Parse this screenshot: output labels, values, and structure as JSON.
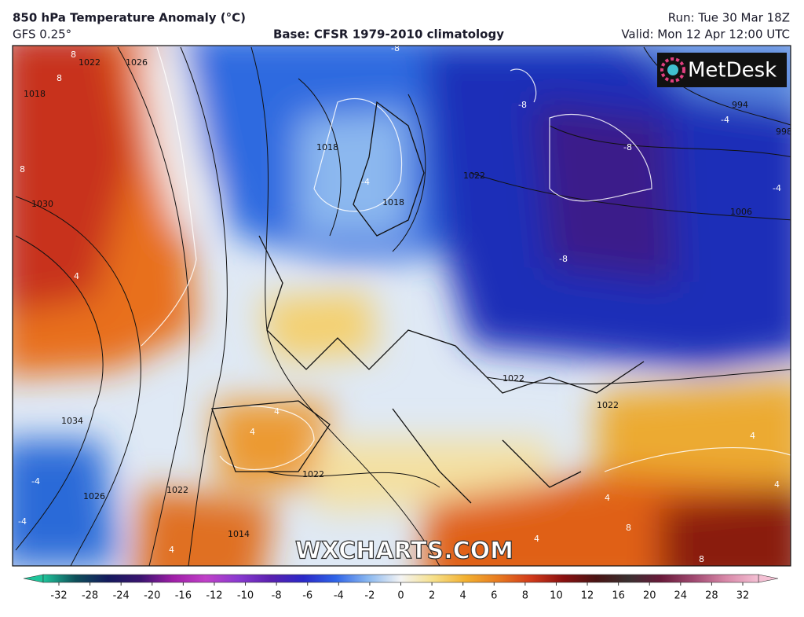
{
  "header": {
    "title": "850 hPa Temperature Anomaly (°C)",
    "model": "GFS 0.25°",
    "base": "Base: CFSR 1979-2010 climatology",
    "run": "Run: Tue 30 Mar 18Z",
    "valid": "Valid: Mon 12 Apr 12:00 UTC"
  },
  "map": {
    "logo": "MetDesk",
    "watermark": "WXCHARTS.COM",
    "isobar_labels": [
      "1018",
      "1022",
      "1026",
      "1030",
      "1034",
      "1026",
      "1022",
      "1014",
      "1018",
      "1018",
      "1022",
      "1022",
      "994",
      "998",
      "1006",
      "1022",
      "1022"
    ],
    "anomaly_labels": [
      "8",
      "8",
      "8",
      "4",
      "-4",
      "-8",
      "-8",
      "-8",
      "-8",
      "-4",
      "-4",
      "4",
      "4",
      "4",
      "-4",
      "-4",
      "4",
      "8",
      "8",
      "4",
      "4",
      "4"
    ]
  },
  "colorbar": {
    "ticks": [
      -32,
      -28,
      -24,
      -20,
      -16,
      -12,
      -10,
      -8,
      -6,
      -4,
      -2,
      0,
      2,
      4,
      6,
      8,
      10,
      12,
      16,
      20,
      24,
      28,
      32
    ],
    "colors": [
      "#1fc49a",
      "#0e4f5a",
      "#141a5e",
      "#3a1470",
      "#a01ea8",
      "#c040c8",
      "#8a3ad0",
      "#5a20b0",
      "#2a28c8",
      "#2f64e8",
      "#8ab8f0",
      "#f4f4f4",
      "#f6e08a",
      "#f2b030",
      "#e87a20",
      "#d23a1a",
      "#8a1010",
      "#4a1414",
      "#3a3030",
      "#6a1a3a",
      "#a04870",
      "#d888a8",
      "#f4c0d4"
    ]
  }
}
